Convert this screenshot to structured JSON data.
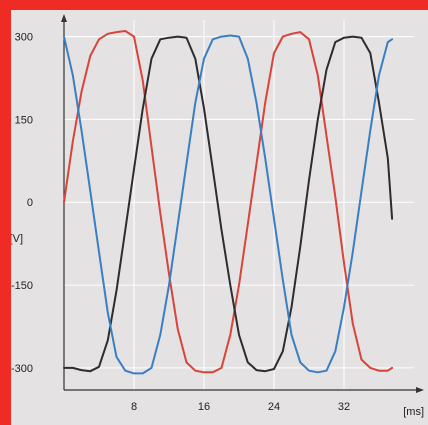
{
  "chart_data": {
    "type": "line",
    "title": "",
    "xlabel": "[ms]",
    "ylabel": "[V]",
    "xlim": [
      0,
      40
    ],
    "ylim": [
      -340,
      330
    ],
    "x_ticks": [
      8,
      16,
      24,
      32
    ],
    "y_ticks": [
      300,
      150,
      0,
      -150,
      -300
    ],
    "grid": true,
    "legend": "none",
    "series": [
      {
        "color": "#d9433a",
        "x": [
          0,
          1,
          2,
          3,
          4,
          5,
          6,
          7,
          8,
          9,
          10,
          11,
          12,
          13,
          14,
          15,
          16,
          17,
          18,
          19,
          20,
          21,
          22,
          23,
          24,
          25,
          26,
          27,
          28,
          29,
          30,
          31,
          32,
          33,
          34,
          35,
          36,
          37,
          37.5
        ],
        "y": [
          0,
          110,
          200,
          265,
          295,
          305,
          308,
          310,
          300,
          220,
          100,
          -20,
          -130,
          -230,
          -290,
          -305,
          -308,
          -308,
          -300,
          -240,
          -150,
          -40,
          70,
          180,
          270,
          300,
          305,
          308,
          295,
          230,
          120,
          10,
          -110,
          -220,
          -285,
          -300,
          -305,
          -305,
          -300
        ]
      },
      {
        "color": "#2d2d2d",
        "x": [
          0,
          1,
          2,
          3,
          4,
          5,
          6,
          7,
          8,
          9,
          10,
          11,
          12,
          13,
          14,
          15,
          16,
          17,
          18,
          19,
          20,
          21,
          22,
          23,
          24,
          25,
          26,
          27,
          28,
          29,
          30,
          31,
          32,
          33,
          34,
          35,
          36,
          37,
          37.5
        ],
        "y": [
          -300,
          -300,
          -304,
          -306,
          -298,
          -250,
          -160,
          -50,
          60,
          170,
          260,
          295,
          298,
          300,
          298,
          260,
          170,
          60,
          -50,
          -150,
          -240,
          -290,
          -304,
          -306,
          -302,
          -270,
          -190,
          -80,
          40,
          150,
          240,
          290,
          298,
          300,
          298,
          270,
          180,
          80,
          -30
        ]
      },
      {
        "color": "#3a7fc4",
        "x": [
          0,
          1,
          2,
          3,
          4,
          5,
          6,
          7,
          8,
          9,
          10,
          11,
          12,
          13,
          14,
          15,
          16,
          17,
          18,
          19,
          20,
          21,
          22,
          23,
          24,
          25,
          26,
          27,
          28,
          29,
          30,
          31,
          32,
          33,
          34,
          35,
          36,
          37,
          37.5
        ],
        "y": [
          300,
          230,
          130,
          20,
          -90,
          -200,
          -280,
          -305,
          -310,
          -310,
          -300,
          -240,
          -150,
          -40,
          70,
          180,
          260,
          295,
          300,
          302,
          300,
          260,
          180,
          80,
          -30,
          -140,
          -240,
          -290,
          -305,
          -308,
          -305,
          -270,
          -190,
          -90,
          20,
          130,
          230,
          290,
          295
        ]
      }
    ]
  }
}
